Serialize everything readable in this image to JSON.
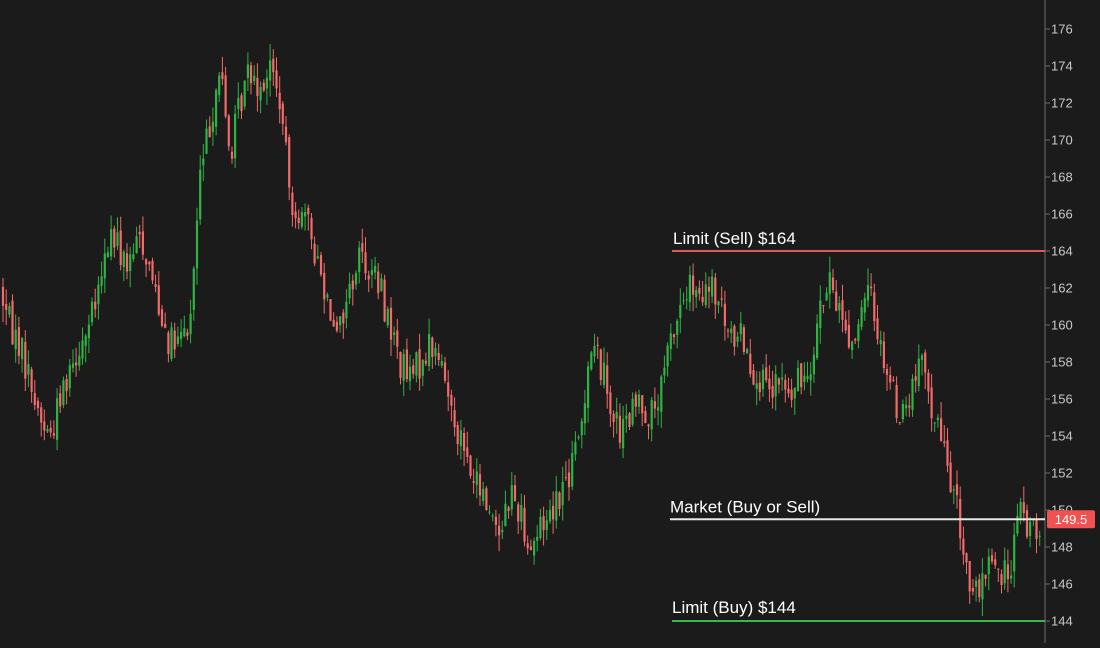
{
  "chart_data": {
    "type": "candlestick",
    "y_axis": {
      "position": "right",
      "ticks": [
        144,
        146,
        148,
        150,
        152,
        154,
        156,
        158,
        160,
        162,
        164,
        166,
        168,
        170,
        172,
        174,
        176
      ],
      "ylim": [
        143,
        177
      ]
    },
    "grid": false,
    "colors": {
      "background": "#1b1b1b",
      "up": "#2fb344",
      "down": "#f26a6a",
      "axis": "#6b6b6b",
      "tick_text": "#c8c8c8",
      "market_line": "#e8e8e8",
      "sell_line": "#e05a5a",
      "buy_line": "#36b84a",
      "current_price_bg": "#f05252"
    },
    "levels": [
      {
        "id": "sell",
        "label": "Limit (Sell) $164",
        "price": 164,
        "color": "#e05a5a"
      },
      {
        "id": "market",
        "label": "Market (Buy or Sell)",
        "price": 149.5,
        "color": "#e8e8e8"
      },
      {
        "id": "buy",
        "label": "Limit (Buy) $144",
        "price": 144,
        "color": "#36b84a"
      }
    ],
    "current_price": {
      "label": "149.5",
      "value": 149.5
    },
    "price_path": [
      [
        0,
        162
      ],
      [
        10,
        160
      ],
      [
        20,
        159
      ],
      [
        30,
        157
      ],
      [
        40,
        155
      ],
      [
        50,
        154
      ],
      [
        60,
        156
      ],
      [
        70,
        158
      ],
      [
        80,
        159
      ],
      [
        90,
        160
      ],
      [
        100,
        162
      ],
      [
        110,
        165
      ],
      [
        120,
        164
      ],
      [
        130,
        163
      ],
      [
        140,
        165
      ],
      [
        150,
        163
      ],
      [
        160,
        161
      ],
      [
        170,
        159
      ],
      [
        180,
        159
      ],
      [
        190,
        160
      ],
      [
        200,
        168
      ],
      [
        210,
        171
      ],
      [
        220,
        174
      ],
      [
        230,
        169
      ],
      [
        240,
        172
      ],
      [
        250,
        174
      ],
      [
        260,
        173
      ],
      [
        270,
        174
      ],
      [
        280,
        172
      ],
      [
        290,
        167
      ],
      [
        300,
        166
      ],
      [
        310,
        165
      ],
      [
        320,
        163
      ],
      [
        330,
        161
      ],
      [
        340,
        160
      ],
      [
        350,
        162
      ],
      [
        360,
        164
      ],
      [
        370,
        163
      ],
      [
        380,
        162
      ],
      [
        390,
        160
      ],
      [
        400,
        158
      ],
      [
        410,
        157
      ],
      [
        420,
        158
      ],
      [
        430,
        159
      ],
      [
        440,
        158
      ],
      [
        450,
        156
      ],
      [
        460,
        154
      ],
      [
        470,
        152
      ],
      [
        480,
        151
      ],
      [
        490,
        150
      ],
      [
        500,
        149
      ],
      [
        510,
        151
      ],
      [
        520,
        150
      ],
      [
        530,
        148
      ],
      [
        540,
        149
      ],
      [
        550,
        150
      ],
      [
        560,
        151
      ],
      [
        570,
        152
      ],
      [
        580,
        154
      ],
      [
        590,
        159
      ],
      [
        600,
        158
      ],
      [
        610,
        156
      ],
      [
        620,
        154
      ],
      [
        630,
        155
      ],
      [
        640,
        156
      ],
      [
        650,
        155
      ],
      [
        660,
        156
      ],
      [
        670,
        159
      ],
      [
        680,
        161
      ],
      [
        690,
        162
      ],
      [
        700,
        161
      ],
      [
        710,
        162
      ],
      [
        720,
        161
      ],
      [
        730,
        159
      ],
      [
        740,
        160
      ],
      [
        750,
        158
      ],
      [
        760,
        157
      ],
      [
        770,
        156
      ],
      [
        780,
        157
      ],
      [
        790,
        156
      ],
      [
        800,
        157
      ],
      [
        810,
        158
      ],
      [
        820,
        161
      ],
      [
        830,
        162
      ],
      [
        840,
        161
      ],
      [
        850,
        159
      ],
      [
        860,
        160
      ],
      [
        870,
        162
      ],
      [
        880,
        159
      ],
      [
        890,
        157
      ],
      [
        900,
        155
      ],
      [
        910,
        156
      ],
      [
        920,
        158
      ],
      [
        930,
        156
      ],
      [
        940,
        154
      ],
      [
        950,
        152
      ],
      [
        960,
        149
      ],
      [
        970,
        146
      ],
      [
        980,
        145
      ],
      [
        990,
        148
      ],
      [
        1000,
        146
      ],
      [
        1010,
        147
      ],
      [
        1020,
        150
      ],
      [
        1030,
        149
      ],
      [
        1040,
        149.5
      ]
    ]
  }
}
